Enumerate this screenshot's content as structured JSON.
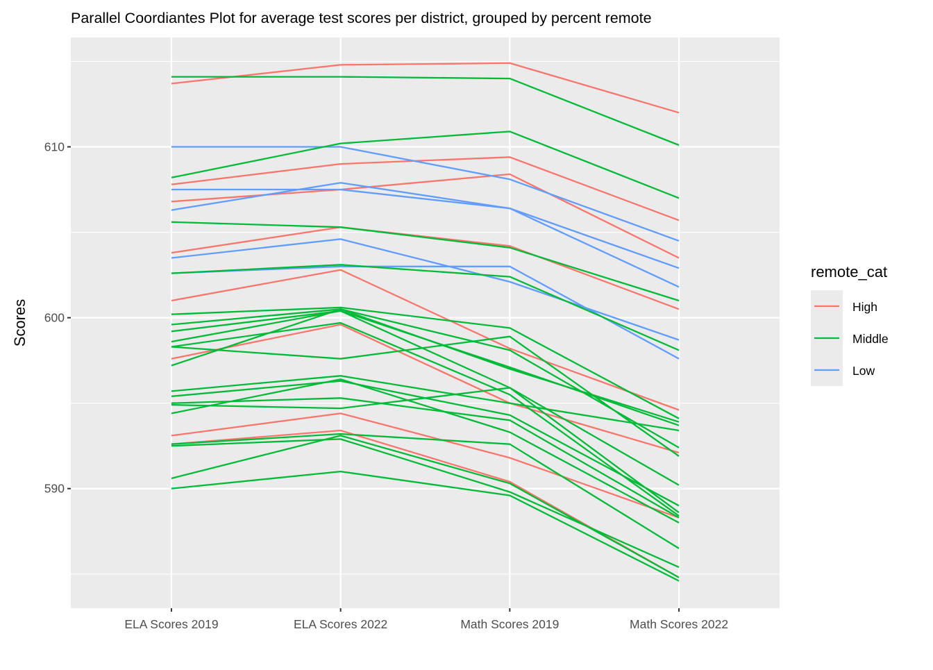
{
  "chart_data": {
    "type": "line",
    "title": "Parallel Coordiantes Plot for average test scores per district, grouped by percent remote",
    "xlabel": "",
    "ylabel": "Scores",
    "categories": [
      "ELA Scores 2019",
      "ELA Scores 2022",
      "Math Scores 2019",
      "Math Scores 2022"
    ],
    "ylim": [
      583.0,
      616.4
    ],
    "yticks": [
      590,
      600,
      610
    ],
    "grid": true,
    "legend": {
      "title": "remote_cat",
      "placement": "right",
      "entries": [
        {
          "label": "High",
          "color": "#F8766D"
        },
        {
          "label": "Middle",
          "color": "#00BA38"
        },
        {
          "label": "Low",
          "color": "#619CFF"
        }
      ]
    },
    "series": [
      {
        "group": "High",
        "values": [
          613.7,
          614.8,
          614.9,
          612.0
        ]
      },
      {
        "group": "High",
        "values": [
          607.8,
          609.0,
          609.4,
          605.7
        ]
      },
      {
        "group": "High",
        "values": [
          606.8,
          607.5,
          608.4,
          603.5
        ]
      },
      {
        "group": "High",
        "values": [
          603.8,
          605.3,
          604.2,
          600.5
        ]
      },
      {
        "group": "High",
        "values": [
          601.0,
          602.8,
          598.2,
          594.6
        ]
      },
      {
        "group": "High",
        "values": [
          597.6,
          599.6,
          595.0,
          592.1
        ]
      },
      {
        "group": "High",
        "values": [
          593.1,
          594.4,
          591.8,
          588.3
        ]
      },
      {
        "group": "High",
        "values": [
          592.6,
          593.4,
          590.4,
          584.8
        ]
      },
      {
        "group": "Low",
        "values": [
          610.0,
          610.0,
          608.1,
          604.5
        ]
      },
      {
        "group": "Low",
        "values": [
          607.5,
          607.5,
          606.4,
          601.8
        ]
      },
      {
        "group": "Low",
        "values": [
          606.3,
          607.9,
          606.4,
          602.9
        ]
      },
      {
        "group": "Low",
        "values": [
          603.5,
          604.6,
          602.1,
          598.7
        ]
      },
      {
        "group": "Low",
        "values": [
          602.6,
          603.0,
          603.0,
          597.6
        ]
      },
      {
        "group": "Middle",
        "values": [
          614.1,
          614.1,
          614.0,
          610.1
        ]
      },
      {
        "group": "Middle",
        "values": [
          608.2,
          610.2,
          610.9,
          607.0
        ]
      },
      {
        "group": "Middle",
        "values": [
          605.6,
          605.3,
          604.1,
          601.0
        ]
      },
      {
        "group": "Middle",
        "values": [
          602.6,
          603.1,
          602.4,
          598.1
        ]
      },
      {
        "group": "Middle",
        "values": [
          600.2,
          600.6,
          599.4,
          594.1
        ]
      },
      {
        "group": "Middle",
        "values": [
          599.6,
          600.5,
          598.1,
          592.4
        ]
      },
      {
        "group": "Middle",
        "values": [
          599.2,
          600.4,
          597.1,
          593.7
        ]
      },
      {
        "group": "Middle",
        "values": [
          598.6,
          600.4,
          595.9,
          590.2
        ]
      },
      {
        "group": "Middle",
        "values": [
          598.3,
          599.7,
          595.5,
          588.4
        ]
      },
      {
        "group": "Middle",
        "values": [
          598.3,
          597.6,
          598.9,
          591.9
        ]
      },
      {
        "group": "Middle",
        "values": [
          597.2,
          600.5,
          597.0,
          593.9
        ]
      },
      {
        "group": "Middle",
        "values": [
          595.7,
          596.6,
          595.0,
          593.4
        ]
      },
      {
        "group": "Middle",
        "values": [
          595.4,
          596.3,
          594.3,
          589.0
        ]
      },
      {
        "group": "Middle",
        "values": [
          595.0,
          595.3,
          594.0,
          588.3
        ]
      },
      {
        "group": "Middle",
        "values": [
          594.9,
          594.7,
          595.9,
          588.6
        ]
      },
      {
        "group": "Middle",
        "values": [
          594.4,
          596.4,
          593.3,
          588.0
        ]
      },
      {
        "group": "Middle",
        "values": [
          592.6,
          593.2,
          592.6,
          586.5
        ]
      },
      {
        "group": "Middle",
        "values": [
          592.5,
          592.9,
          589.8,
          585.4
        ]
      },
      {
        "group": "Middle",
        "values": [
          590.6,
          593.1,
          590.3,
          584.8
        ]
      },
      {
        "group": "Middle",
        "values": [
          590.0,
          591.0,
          589.6,
          584.6
        ]
      }
    ]
  }
}
